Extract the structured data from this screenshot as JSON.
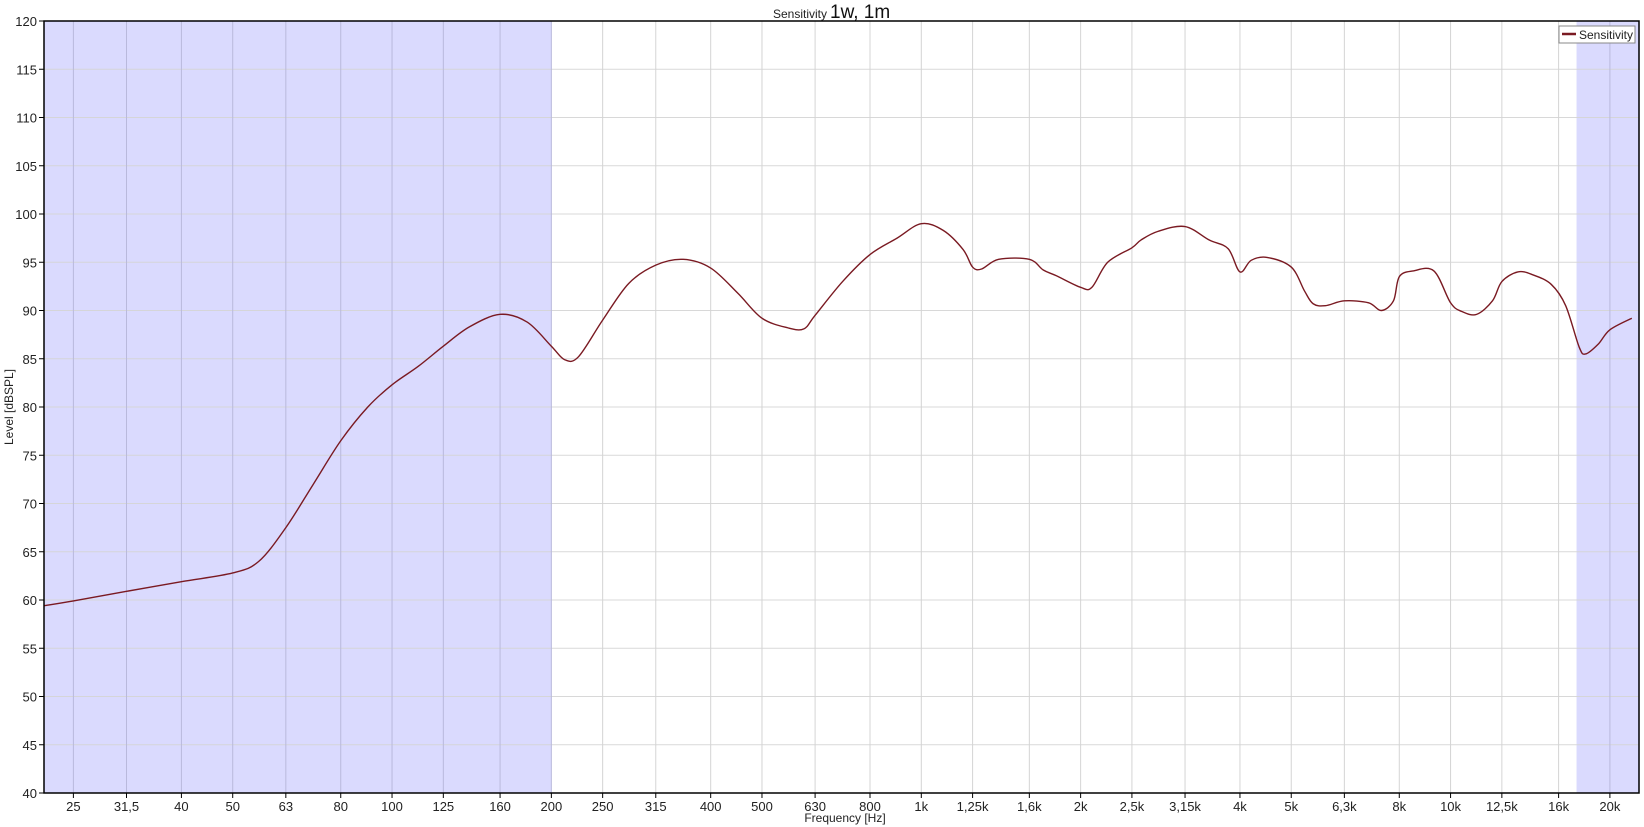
{
  "chart_data": {
    "type": "line",
    "title_small": "Sensitivity",
    "title_large": "1w, 1m",
    "xlabel": "Frequency [Hz]",
    "ylabel": "Level [dBSPL]",
    "xscale": "log",
    "xlim": [
      22,
      22700
    ],
    "ylim": [
      40,
      120
    ],
    "grid": true,
    "legend_position": "top-right",
    "y_ticks": [
      40,
      45,
      50,
      55,
      60,
      65,
      70,
      75,
      80,
      85,
      90,
      95,
      100,
      105,
      110,
      115,
      120
    ],
    "x_ticks": [
      25,
      31.5,
      40,
      50,
      63,
      80,
      100,
      125,
      160,
      200,
      250,
      315,
      400,
      500,
      630,
      800,
      1000,
      1250,
      1600,
      2000,
      2500,
      3150,
      4000,
      5000,
      6300,
      8000,
      10000,
      12500,
      16000,
      20000
    ],
    "x_tick_labels": [
      "25",
      "31,5",
      "40",
      "50",
      "63",
      "80",
      "100",
      "125",
      "160",
      "200",
      "250",
      "315",
      "400",
      "500",
      "630",
      "800",
      "1k",
      "1,25k",
      "1,6k",
      "2k",
      "2,5k",
      "3,15k",
      "4k",
      "5k",
      "6,3k",
      "8k",
      "10k",
      "12,5k",
      "16k",
      "20k"
    ],
    "shaded_ranges": [
      [
        22,
        200
      ],
      [
        17300,
        22700
      ]
    ],
    "colors": {
      "series": "#7a1a22",
      "shade": "#dadafe",
      "grid": "#d4d4d4",
      "grid_shaded": "#b9b9dc"
    },
    "series": [
      {
        "name": "Sensitivity",
        "x": [
          22,
          25,
          31.5,
          40,
          50,
          56,
          63,
          71,
          80,
          90,
          100,
          112,
          125,
          140,
          160,
          180,
          200,
          212,
          225,
          250,
          280,
          315,
          355,
          400,
          450,
          500,
          560,
          600,
          630,
          710,
          800,
          900,
          1000,
          1100,
          1200,
          1250,
          1300,
          1400,
          1600,
          1700,
          1800,
          2000,
          2100,
          2250,
          2500,
          2600,
          2800,
          3150,
          3500,
          3800,
          4000,
          4200,
          4500,
          5000,
          5300,
          5500,
          5800,
          6300,
          7000,
          7400,
          7800,
          8000,
          8500,
          9300,
          10000,
          10500,
          11200,
          12000,
          12500,
          13400,
          14300,
          15500,
          16500,
          17500,
          18000,
          19000,
          20000,
          22000
        ],
        "y": [
          59.4,
          59.9,
          60.9,
          61.9,
          62.8,
          64,
          67.5,
          72,
          76.5,
          80,
          82.3,
          84.2,
          86.3,
          88.3,
          89.6,
          88.8,
          86.3,
          84.9,
          85.2,
          89,
          92.8,
          94.7,
          95.3,
          94.4,
          91.8,
          89.2,
          88.2,
          88.1,
          89.5,
          93,
          95.8,
          97.5,
          99,
          98.3,
          96.3,
          94.5,
          94.3,
          95.3,
          95.3,
          94.2,
          93.6,
          92.4,
          92.4,
          95,
          96.5,
          97.3,
          98.2,
          98.7,
          97.3,
          96.4,
          94,
          95.2,
          95.5,
          94.5,
          92,
          90.7,
          90.5,
          91,
          90.8,
          90,
          91,
          93.5,
          94.1,
          94.1,
          90.8,
          89.9,
          89.6,
          91,
          93,
          94,
          93.7,
          92.7,
          90.5,
          86.2,
          85.5,
          86.5,
          88,
          89.2
        ]
      }
    ]
  }
}
